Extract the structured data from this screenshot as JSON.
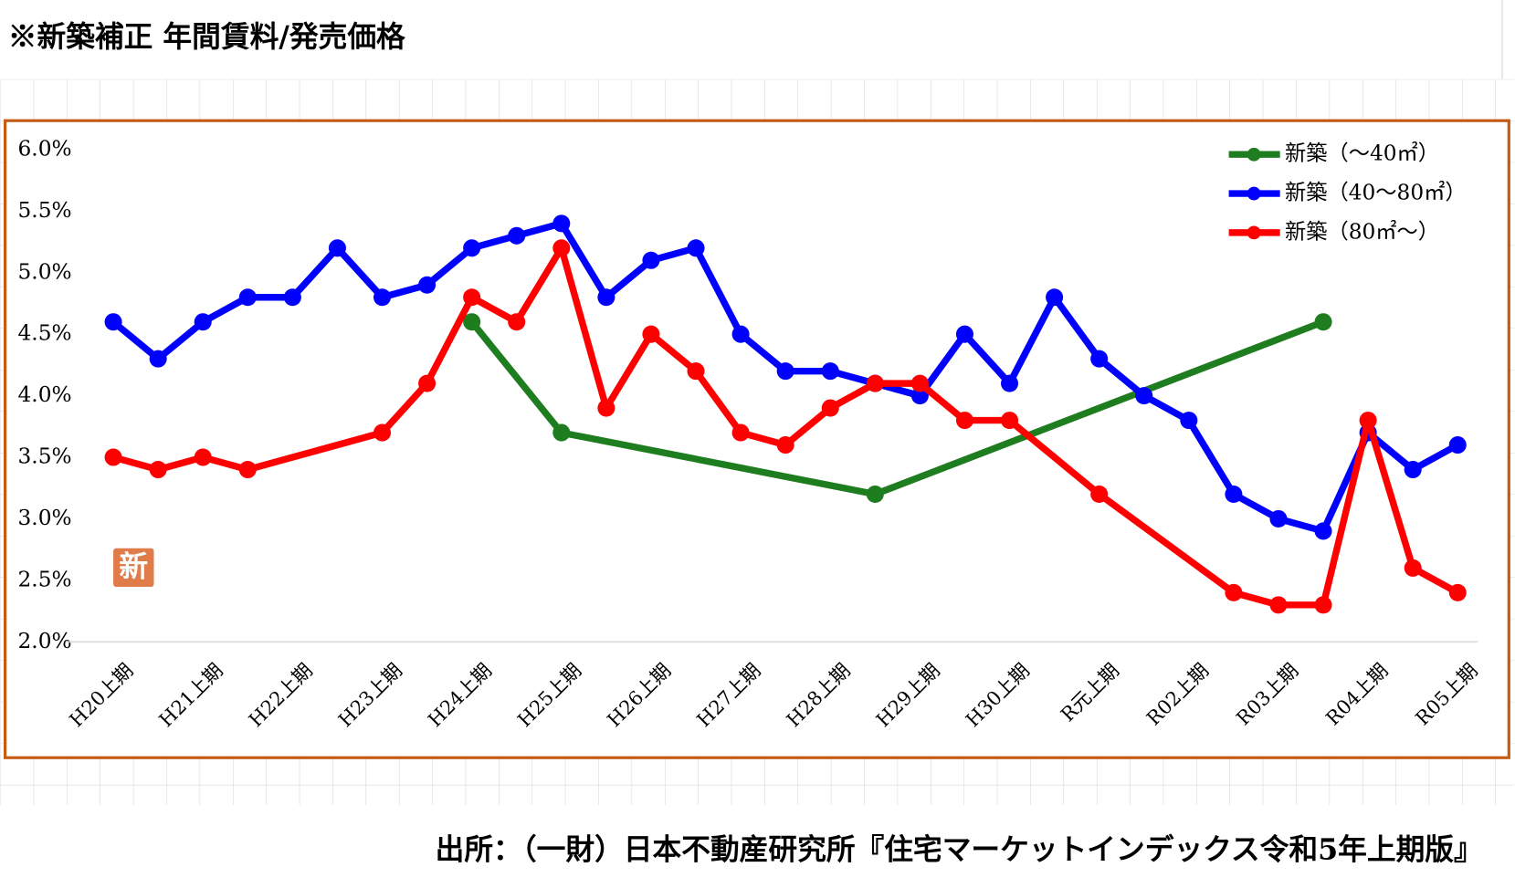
{
  "chart_data": {
    "type": "line",
    "title": "※新築補正 年間賃料/発売価格",
    "source": "出所：（一財）日本不動産研究所『住宅マーケットインデックス令和5年上期版』",
    "badge": "新",
    "categories": [
      "H20上期",
      null,
      "H21上期",
      null,
      "H22上期",
      null,
      "H23上期",
      null,
      "H24上期",
      null,
      "H25上期",
      null,
      "H26上期",
      null,
      "H27上期",
      null,
      "H28上期",
      null,
      "H29上期",
      null,
      "H30上期",
      null,
      "R元上期",
      null,
      "R02上期",
      null,
      "R03上期",
      null,
      "R04上期",
      null,
      "R05上期"
    ],
    "series": [
      {
        "name": "新築（～40㎡）",
        "color": "#1e7d1e",
        "values": [
          null,
          null,
          null,
          null,
          null,
          null,
          null,
          null,
          4.6,
          null,
          3.7,
          null,
          null,
          null,
          null,
          null,
          null,
          3.2,
          null,
          null,
          null,
          null,
          null,
          null,
          null,
          null,
          null,
          4.6,
          null,
          null,
          null
        ]
      },
      {
        "name": "新築（40～80㎡）",
        "color": "#0000ff",
        "values": [
          4.6,
          4.3,
          4.6,
          4.8,
          4.8,
          5.2,
          4.8,
          4.9,
          5.2,
          5.3,
          5.4,
          4.8,
          5.1,
          5.2,
          4.5,
          4.2,
          4.2,
          4.1,
          4.0,
          4.5,
          4.1,
          4.8,
          4.3,
          4.0,
          3.8,
          3.2,
          3.0,
          2.9,
          3.7,
          3.4,
          3.6
        ]
      },
      {
        "name": "新築（80㎡～）",
        "color": "#ff0000",
        "values": [
          3.5,
          3.4,
          3.5,
          3.4,
          null,
          null,
          3.7,
          4.1,
          4.8,
          4.6,
          5.2,
          3.9,
          4.5,
          4.2,
          3.7,
          3.6,
          3.9,
          4.1,
          4.1,
          3.8,
          3.8,
          null,
          3.2,
          null,
          null,
          2.4,
          2.3,
          2.3,
          3.8,
          2.6,
          2.4
        ]
      }
    ],
    "ylim": [
      2.0,
      6.0
    ],
    "yticks": [
      {
        "value": 2.0,
        "label": "2.0%"
      },
      {
        "value": 2.5,
        "label": "2.5%"
      },
      {
        "value": 3.0,
        "label": "3.0%"
      },
      {
        "value": 3.5,
        "label": "3.5%"
      },
      {
        "value": 4.0,
        "label": "4.0%"
      },
      {
        "value": 4.5,
        "label": "4.5%"
      },
      {
        "value": 5.0,
        "label": "5.0%"
      },
      {
        "value": 5.5,
        "label": "5.5%"
      },
      {
        "value": 6.0,
        "label": "6.0%"
      }
    ],
    "connect_gaps": true,
    "legend": "top-right"
  }
}
